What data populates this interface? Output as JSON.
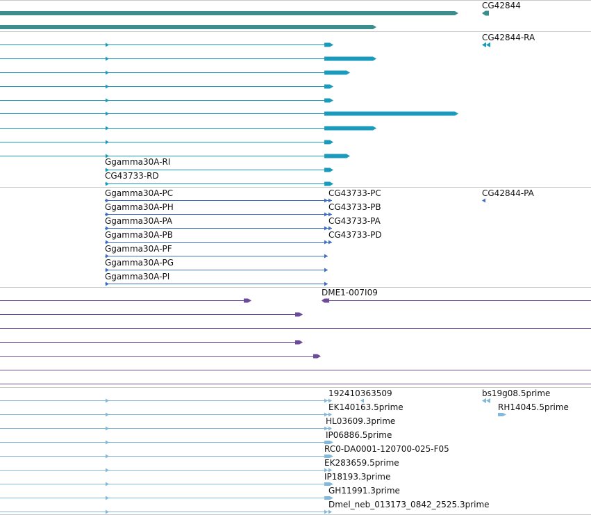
{
  "colors": {
    "gene": "#3C8D8D",
    "mrna": "#1A9BBE",
    "ncrna": "#3D6CC8",
    "alignment": "#6B4B9A",
    "est": "#82B8DA",
    "divider": "#C8C8C8",
    "background": "#FFFFFF"
  },
  "tracks": [
    {
      "name": "gene",
      "color": "#3C8D8D",
      "features": [
        {
          "label": "",
          "start": -20,
          "end": 660,
          "style": "thick",
          "strand": "+",
          "thin": false,
          "cds_start": -20
        },
        {
          "label": "",
          "start": -20,
          "end": 542,
          "style": "thick",
          "strand": "+",
          "thin": false,
          "cds_start": -20
        },
        {
          "label": "CG42844",
          "start": 694,
          "end": 704,
          "style": "small",
          "strand": "-"
        }
      ]
    },
    {
      "name": "mrna",
      "color": "#1A9BBE",
      "features": [
        {
          "label": "",
          "start": -20,
          "end": 480,
          "cds_start": 467,
          "mid_arrow": 153
        },
        {
          "label": "",
          "start": -20,
          "end": 542,
          "cds_start": 467,
          "mid_arrow": 153
        },
        {
          "label": "",
          "start": -20,
          "end": 504,
          "cds_start": 467,
          "mid_arrow": 153
        },
        {
          "label": "",
          "start": -20,
          "end": 480,
          "cds_start": 467,
          "mid_arrow": 153
        },
        {
          "label": "",
          "start": -20,
          "end": 480,
          "cds_start": 467,
          "mid_arrow": 153
        },
        {
          "label": "",
          "start": -20,
          "end": 660,
          "cds_start": 467,
          "mid_arrow": 153
        },
        {
          "label": "",
          "start": -20,
          "end": 542,
          "cds_start": 467,
          "mid_arrow": 153
        },
        {
          "label": "",
          "start": -20,
          "end": 480,
          "cds_start": 467,
          "mid_arrow": 153
        },
        {
          "label": "",
          "start": -20,
          "end": 504,
          "cds_start": 467,
          "mid_arrow": 153
        },
        {
          "label": "Ggamma30A-RI",
          "start": 151,
          "end": 480,
          "cds_start": 467,
          "mid_arrow": 153
        },
        {
          "label": "CG43733-RD",
          "start": 151,
          "end": 480,
          "cds_start": 467,
          "mid_arrow": 153
        },
        {
          "label": "CG42844-RA",
          "start": 694,
          "end": 706,
          "style": "double-left"
        }
      ]
    },
    {
      "name": "ncrna",
      "color": "#3D6CC8",
      "features": [
        {
          "label": "Ggamma30A-PC",
          "right_label": "CG43733-PC",
          "start": 151,
          "end": 478
        },
        {
          "label": "Ggamma30A-PH",
          "right_label": "CG43733-PB",
          "start": 151,
          "end": 478
        },
        {
          "label": "Ggamma30A-PA",
          "right_label": "CG43733-PA",
          "start": 151,
          "end": 478
        },
        {
          "label": "Ggamma30A-PB",
          "right_label": "CG43733-PD",
          "start": 151,
          "end": 478
        },
        {
          "label": "Ggamma30A-PF",
          "start": 151,
          "end": 472
        },
        {
          "label": "Ggamma30A-PG",
          "start": 151,
          "end": 472
        },
        {
          "label": "Ggamma30A-PI",
          "start": 151,
          "end": 472
        },
        {
          "label": "CG42844-PA",
          "start": 694,
          "end": 699,
          "style": "left-small"
        }
      ]
    },
    {
      "name": "alignment",
      "color": "#6B4B9A",
      "features": [
        {
          "label": "",
          "start": -20,
          "end": 362
        },
        {
          "label": "DME1-007I09",
          "start": 463,
          "end": 860,
          "style": "left"
        },
        {
          "label": "",
          "start": -20,
          "end": 436
        },
        {
          "label": "",
          "start": -20,
          "end": 860,
          "style": "line"
        },
        {
          "label": "",
          "start": -20,
          "end": 436
        },
        {
          "label": "",
          "start": -20,
          "end": 462
        },
        {
          "label": "",
          "start": -20,
          "end": 860,
          "style": "line"
        },
        {
          "label": "",
          "start": -20,
          "end": 860,
          "style": "line"
        }
      ]
    },
    {
      "name": "est",
      "color": "#82B8DA",
      "features": [
        {
          "label": "",
          "start": -20,
          "end": 478
        },
        {
          "label": "192410363509",
          "start": 519,
          "end": 526,
          "style": "left-small"
        },
        {
          "label": "EK140163.5prime",
          "start": -20,
          "end": 478
        },
        {
          "label": "HL03609.3prime",
          "start": -20,
          "end": 478
        },
        {
          "label": "IP06886.5prime",
          "start": -20,
          "end": 480
        },
        {
          "label": "RC0-DA0001-120700-025-F05",
          "start": -20,
          "end": 480
        },
        {
          "label": "EK283659.5prime",
          "start": -20,
          "end": 478
        },
        {
          "label": "IP18193.3prime",
          "start": -20,
          "end": 480
        },
        {
          "label": "GH11991.3prime",
          "start": -20,
          "end": 480
        },
        {
          "label": "Dmel_neb_013173_0842_2525.3prime",
          "start": -20,
          "end": 478
        },
        {
          "label": "bs19g08.5prime",
          "start": 694,
          "end": 706,
          "style": "double-left"
        },
        {
          "label": "RH14045.5prime",
          "start": 717,
          "end": 729
        }
      ]
    }
  ]
}
